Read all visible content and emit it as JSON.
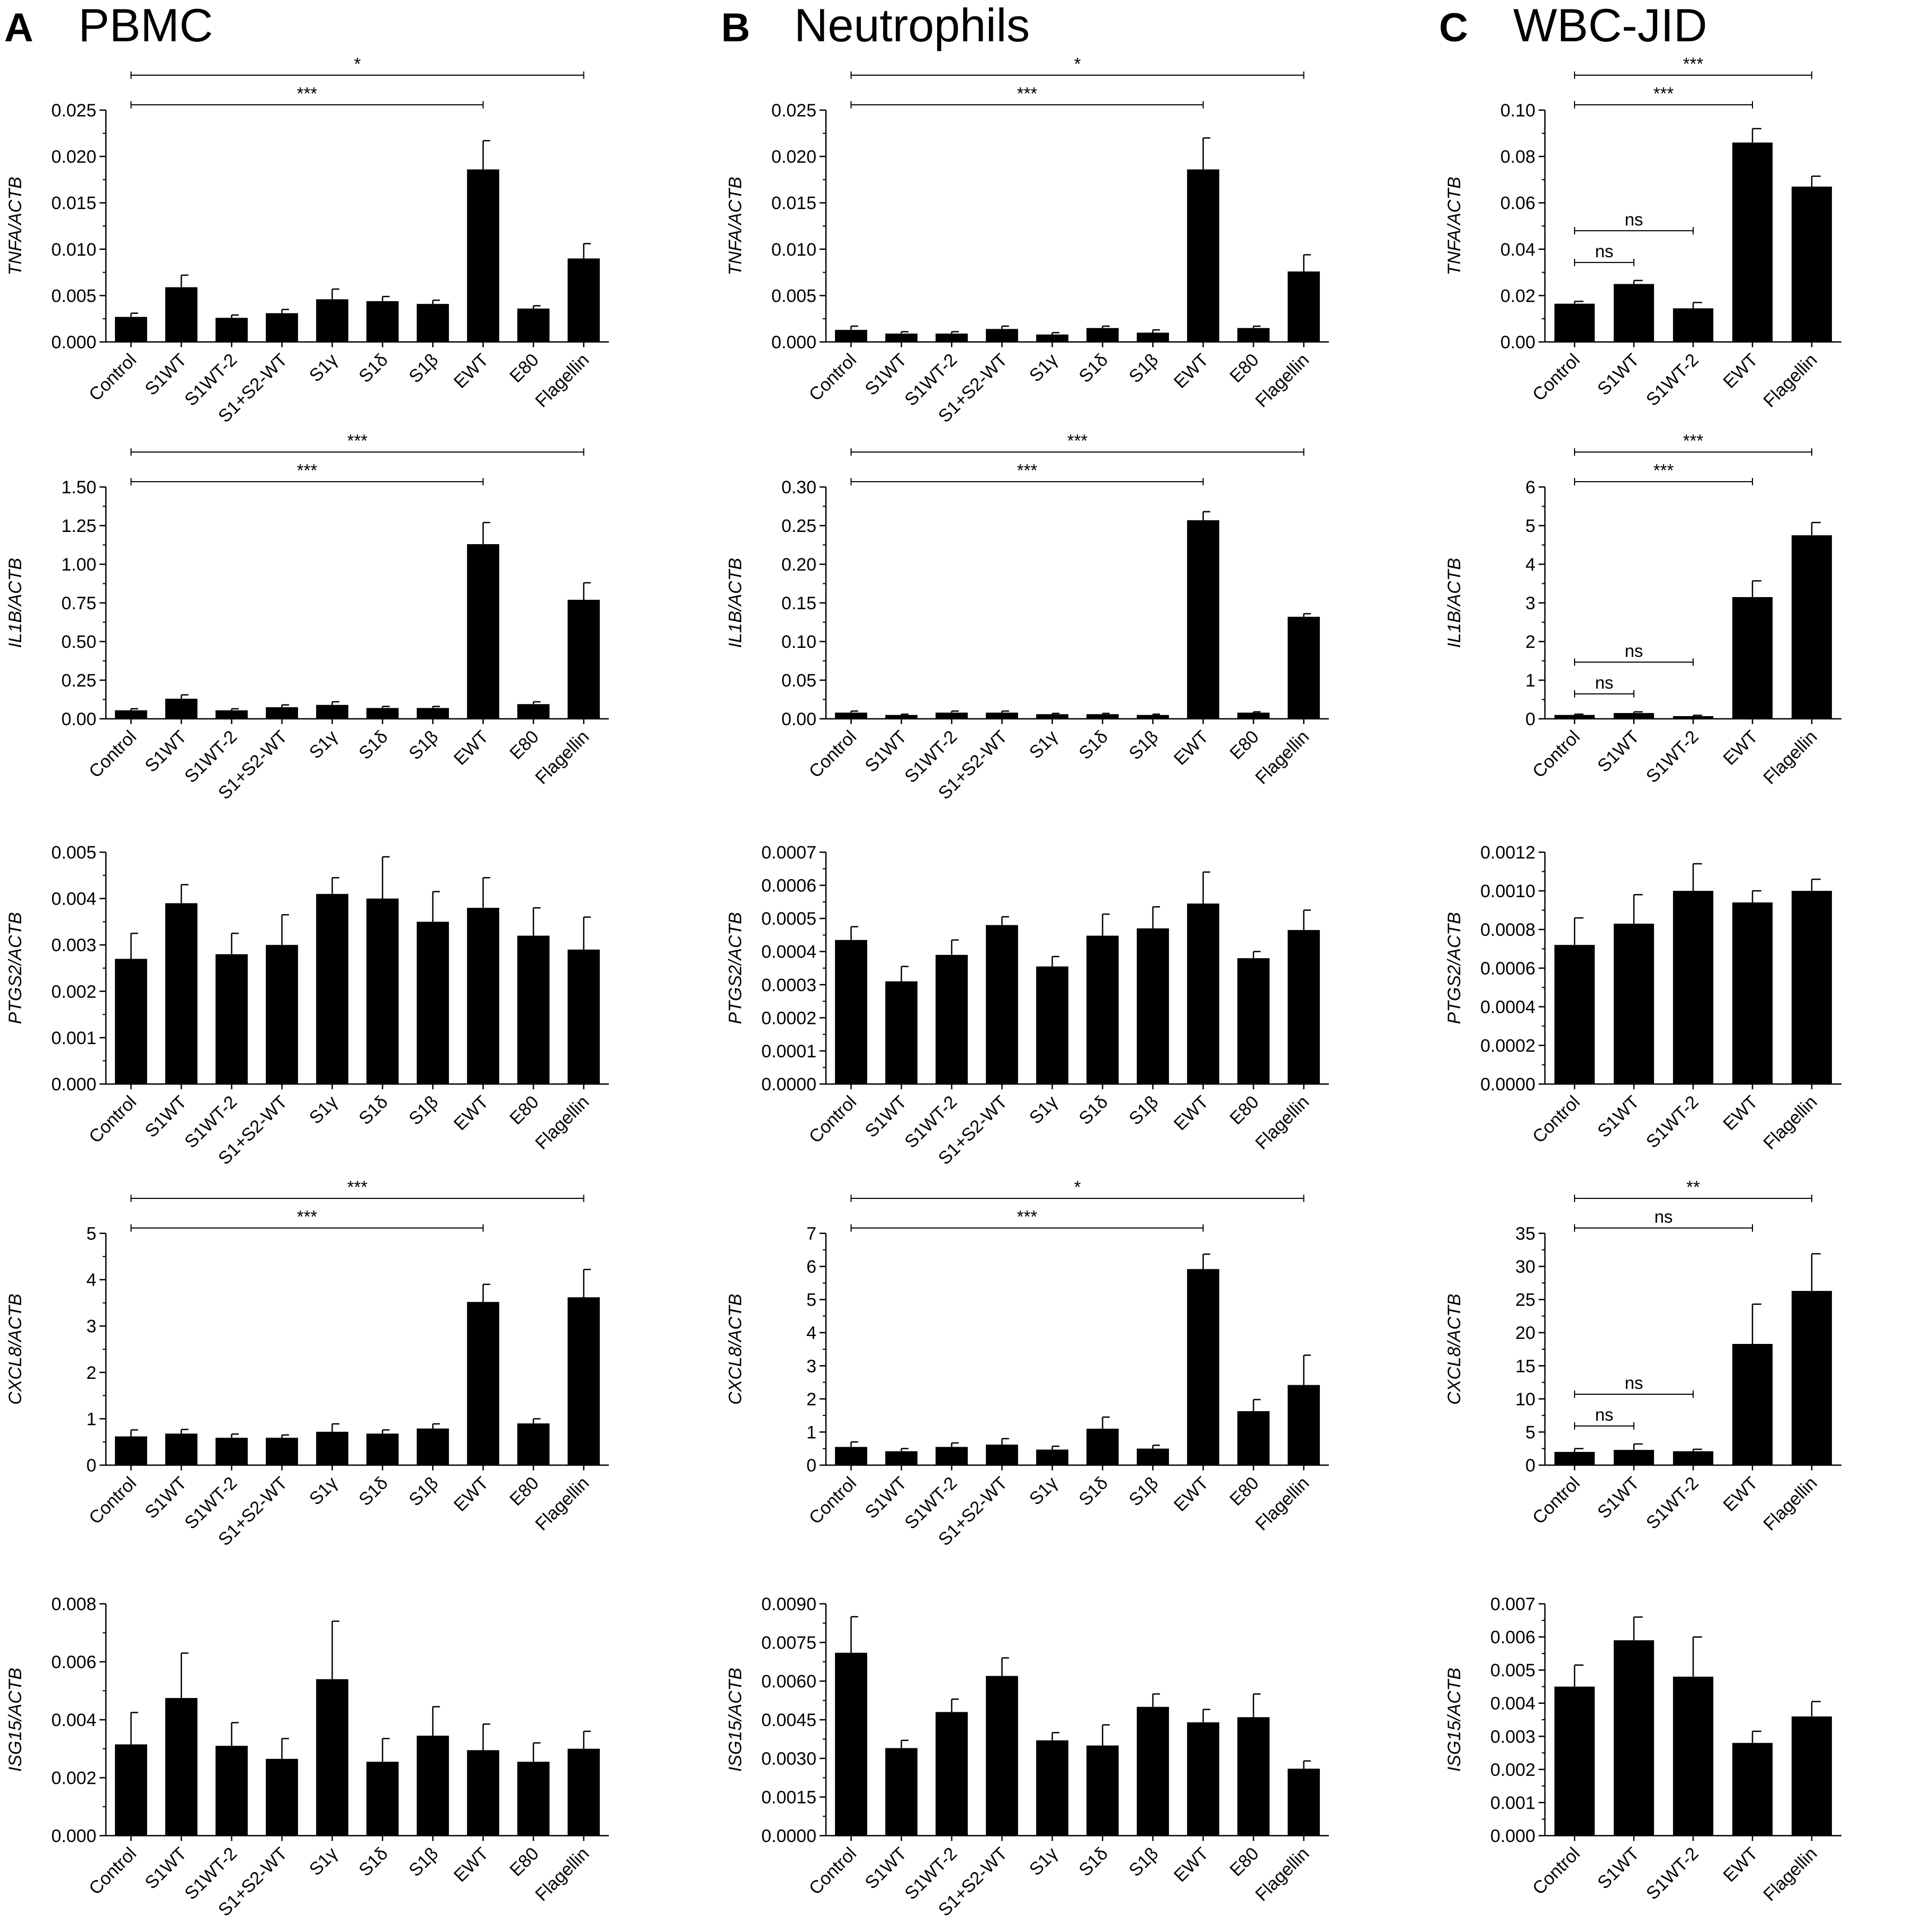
{
  "panels": [
    {
      "letter": "A",
      "title": "PBMC"
    },
    {
      "letter": "B",
      "title": "Neutrophils"
    },
    {
      "letter": "C",
      "title": "WBC-JID"
    }
  ],
  "categories_long": [
    "Control",
    "S1WT",
    "S1WT-2",
    "S1+S2-WT",
    "S1γ",
    "S1δ",
    "S1β",
    "EWT",
    "E80",
    "Flagellin"
  ],
  "categories_short": [
    "Control",
    "S1WT",
    "S1WT-2",
    "EWT",
    "Flagellin"
  ],
  "chart_data": [
    {
      "id": "A-TNFA",
      "panel": "A",
      "type": "bar",
      "ylabel": "TNFA/ACTB",
      "ylim": [
        0,
        0.025
      ],
      "ticks": [
        0,
        0.005,
        0.01,
        0.015,
        0.02,
        0.025
      ],
      "decimals": 3,
      "cats": "long",
      "values": [
        0.0027,
        0.0059,
        0.0026,
        0.0031,
        0.0046,
        0.0044,
        0.0041,
        0.0186,
        0.0036,
        0.009
      ],
      "errors": [
        0.0004,
        0.0013,
        0.0003,
        0.0004,
        0.0011,
        0.0005,
        0.0004,
        0.0031,
        0.0003,
        0.0016
      ],
      "sig": [
        {
          "from": 0,
          "to": 7,
          "label": "***"
        },
        {
          "from": 0,
          "to": 9,
          "label": "*"
        }
      ]
    },
    {
      "id": "B-TNFA",
      "panel": "B",
      "type": "bar",
      "ylabel": "TNFA/ACTB",
      "ylim": [
        0,
        0.025
      ],
      "ticks": [
        0,
        0.005,
        0.01,
        0.015,
        0.02,
        0.025
      ],
      "decimals": 3,
      "cats": "long",
      "values": [
        0.0013,
        0.0009,
        0.0009,
        0.0014,
        0.0008,
        0.0015,
        0.001,
        0.0186,
        0.0015,
        0.0076
      ],
      "errors": [
        0.0004,
        0.0002,
        0.0002,
        0.0003,
        0.0002,
        0.0002,
        0.0003,
        0.0034,
        0.0002,
        0.0018
      ],
      "sig": [
        {
          "from": 0,
          "to": 7,
          "label": "***"
        },
        {
          "from": 0,
          "to": 9,
          "label": "*"
        }
      ]
    },
    {
      "id": "C-TNFA",
      "panel": "C",
      "type": "bar",
      "ylabel": "TNFA/ACTB",
      "ylim": [
        0,
        0.1
      ],
      "ticks": [
        0,
        0.02,
        0.04,
        0.06,
        0.08,
        0.1
      ],
      "decimals": 2,
      "cats": "short",
      "values": [
        0.0165,
        0.025,
        0.0145,
        0.086,
        0.067
      ],
      "errors": [
        0.001,
        0.0015,
        0.0025,
        0.006,
        0.0045
      ],
      "sig": [
        {
          "from": 0,
          "to": 1,
          "label": "ns"
        },
        {
          "from": 0,
          "to": 2,
          "label": "ns"
        },
        {
          "from": 0,
          "to": 3,
          "label": "***"
        },
        {
          "from": 0,
          "to": 4,
          "label": "***"
        }
      ]
    },
    {
      "id": "A-IL1B",
      "panel": "A",
      "type": "bar",
      "ylabel": "IL1B/ACTB",
      "ylim": [
        0,
        1.5
      ],
      "ticks": [
        0,
        0.25,
        0.5,
        0.75,
        1,
        1.25,
        1.5
      ],
      "decimals": 2,
      "cats": "long",
      "values": [
        0.055,
        0.13,
        0.055,
        0.075,
        0.09,
        0.07,
        0.07,
        1.13,
        0.095,
        0.77
      ],
      "errors": [
        0.01,
        0.025,
        0.01,
        0.015,
        0.02,
        0.01,
        0.01,
        0.14,
        0.015,
        0.11
      ],
      "sig": [
        {
          "from": 0,
          "to": 7,
          "label": "***"
        },
        {
          "from": 0,
          "to": 9,
          "label": "***"
        }
      ]
    },
    {
      "id": "B-IL1B",
      "panel": "B",
      "type": "bar",
      "ylabel": "IL1B/ACTB",
      "ylim": [
        0,
        0.3
      ],
      "ticks": [
        0,
        0.05,
        0.1,
        0.15,
        0.2,
        0.25,
        0.3
      ],
      "decimals": 2,
      "cats": "long",
      "values": [
        0.008,
        0.005,
        0.008,
        0.008,
        0.006,
        0.006,
        0.005,
        0.257,
        0.008,
        0.132
      ],
      "errors": [
        0.002,
        0.001,
        0.002,
        0.002,
        0.001,
        0.001,
        0.001,
        0.011,
        0.001,
        0.004
      ],
      "sig": [
        {
          "from": 0,
          "to": 7,
          "label": "***"
        },
        {
          "from": 0,
          "to": 9,
          "label": "***"
        }
      ]
    },
    {
      "id": "C-IL1B",
      "panel": "C",
      "type": "bar",
      "ylabel": "IL1B/ACTB",
      "ylim": [
        0,
        6
      ],
      "ticks": [
        0,
        1,
        2,
        3,
        4,
        5,
        6
      ],
      "decimals": 0,
      "cats": "short",
      "values": [
        0.1,
        0.15,
        0.07,
        3.15,
        4.75
      ],
      "errors": [
        0.02,
        0.03,
        0.02,
        0.42,
        0.33
      ],
      "sig": [
        {
          "from": 0,
          "to": 1,
          "label": "ns"
        },
        {
          "from": 0,
          "to": 2,
          "label": "ns"
        },
        {
          "from": 0,
          "to": 3,
          "label": "***"
        },
        {
          "from": 0,
          "to": 4,
          "label": "***"
        }
      ]
    },
    {
      "id": "A-PTGS2",
      "panel": "A",
      "type": "bar",
      "ylabel": "PTGS2/ACTB",
      "ylim": [
        0,
        0.005
      ],
      "ticks": [
        0,
        0.001,
        0.002,
        0.003,
        0.004,
        0.005
      ],
      "decimals": 3,
      "cats": "long",
      "values": [
        0.0027,
        0.0039,
        0.0028,
        0.003,
        0.0041,
        0.004,
        0.0035,
        0.0038,
        0.0032,
        0.0029
      ],
      "errors": [
        0.00055,
        0.0004,
        0.00045,
        0.00065,
        0.00035,
        0.0009,
        0.00065,
        0.00065,
        0.0006,
        0.0007
      ],
      "sig": []
    },
    {
      "id": "B-PTGS2",
      "panel": "B",
      "type": "bar",
      "ylabel": "PTGS2/ACTB",
      "ylim": [
        0,
        0.0007
      ],
      "ticks": [
        0,
        0.0001,
        0.0002,
        0.0003,
        0.0004,
        0.0005,
        0.0006,
        0.0007
      ],
      "decimals": 4,
      "cats": "long",
      "values": [
        0.000435,
        0.00031,
        0.00039,
        0.00048,
        0.000355,
        0.000448,
        0.00047,
        0.000545,
        0.00038,
        0.000465
      ],
      "errors": [
        4e-05,
        4.5e-05,
        4.5e-05,
        2.5e-05,
        3e-05,
        6.5e-05,
        6.5e-05,
        9.5e-05,
        2e-05,
        6e-05
      ],
      "sig": []
    },
    {
      "id": "C-PTGS2",
      "panel": "C",
      "type": "bar",
      "ylabel": "PTGS2/ACTB",
      "ylim": [
        0,
        0.0012
      ],
      "ticks": [
        0,
        0.0002,
        0.0004,
        0.0006,
        0.0008,
        0.001,
        0.0012
      ],
      "decimals": 4,
      "cats": "short",
      "values": [
        0.00072,
        0.00083,
        0.001,
        0.00094,
        0.001
      ],
      "errors": [
        0.00014,
        0.00015,
        0.00014,
        6e-05,
        6e-05
      ],
      "sig": []
    },
    {
      "id": "A-CXCL8",
      "panel": "A",
      "type": "bar",
      "ylabel": "CXCL8/ACTB",
      "ylim": [
        0,
        5
      ],
      "ticks": [
        0,
        1,
        2,
        3,
        4,
        5
      ],
      "decimals": 0,
      "cats": "long",
      "values": [
        0.62,
        0.68,
        0.59,
        0.59,
        0.72,
        0.68,
        0.79,
        3.52,
        0.9,
        3.62
      ],
      "errors": [
        0.14,
        0.09,
        0.08,
        0.06,
        0.17,
        0.08,
        0.1,
        0.38,
        0.1,
        0.6
      ],
      "sig": [
        {
          "from": 0,
          "to": 7,
          "label": "***"
        },
        {
          "from": 0,
          "to": 9,
          "label": "***"
        }
      ]
    },
    {
      "id": "B-CXCL8",
      "panel": "B",
      "type": "bar",
      "ylabel": "CXCL8/ACTB",
      "ylim": [
        0,
        7
      ],
      "ticks": [
        0,
        1,
        2,
        3,
        4,
        5,
        6,
        7
      ],
      "decimals": 0,
      "cats": "long",
      "values": [
        0.55,
        0.42,
        0.55,
        0.62,
        0.47,
        1.1,
        0.5,
        5.92,
        1.63,
        2.42
      ],
      "errors": [
        0.15,
        0.08,
        0.12,
        0.18,
        0.1,
        0.35,
        0.1,
        0.45,
        0.35,
        0.9
      ],
      "sig": [
        {
          "from": 0,
          "to": 7,
          "label": "***"
        },
        {
          "from": 0,
          "to": 9,
          "label": "*"
        }
      ]
    },
    {
      "id": "C-CXCL8",
      "panel": "C",
      "type": "bar",
      "ylabel": "CXCL8/ACTB",
      "ylim": [
        0,
        35
      ],
      "ticks": [
        0,
        5,
        10,
        15,
        20,
        25,
        30,
        35
      ],
      "decimals": 0,
      "cats": "short",
      "values": [
        2,
        2.3,
        2.1,
        18.3,
        26.3
      ],
      "errors": [
        0.5,
        0.9,
        0.3,
        6,
        5.6
      ],
      "sig": [
        {
          "from": 0,
          "to": 1,
          "label": "ns"
        },
        {
          "from": 0,
          "to": 2,
          "label": "ns"
        },
        {
          "from": 0,
          "to": 3,
          "label": "ns"
        },
        {
          "from": 0,
          "to": 4,
          "label": "**"
        }
      ]
    },
    {
      "id": "A-ISG15",
      "panel": "A",
      "type": "bar",
      "ylabel": "ISG15/ACTB",
      "ylim": [
        0,
        0.008
      ],
      "ticks": [
        0,
        0.002,
        0.004,
        0.006,
        0.008
      ],
      "decimals": 3,
      "cats": "long",
      "values": [
        0.00315,
        0.00475,
        0.0031,
        0.00265,
        0.0054,
        0.00255,
        0.00345,
        0.00295,
        0.00255,
        0.003
      ],
      "errors": [
        0.0011,
        0.00155,
        0.0008,
        0.0007,
        0.002,
        0.0008,
        0.001,
        0.0009,
        0.00065,
        0.0006
      ],
      "sig": []
    },
    {
      "id": "B-ISG15",
      "panel": "B",
      "type": "bar",
      "ylabel": "ISG15/ACTB",
      "ylim": [
        0,
        0.009
      ],
      "ticks": [
        0,
        0.0015,
        0.003,
        0.0045,
        0.006,
        0.0075,
        0.009
      ],
      "decimals": 4,
      "cats": "long",
      "values": [
        0.0071,
        0.0034,
        0.0048,
        0.0062,
        0.0037,
        0.0035,
        0.005,
        0.0044,
        0.0046,
        0.0026
      ],
      "errors": [
        0.0014,
        0.0003,
        0.0005,
        0.0007,
        0.0003,
        0.0008,
        0.0005,
        0.0005,
        0.0009,
        0.0003
      ],
      "sig": []
    },
    {
      "id": "C-ISG15",
      "panel": "C",
      "type": "bar",
      "ylabel": "ISG15/ACTB",
      "ylim": [
        0,
        0.007
      ],
      "ticks": [
        0,
        0.001,
        0.002,
        0.003,
        0.004,
        0.005,
        0.006,
        0.007
      ],
      "decimals": 3,
      "cats": "short",
      "values": [
        0.0045,
        0.0059,
        0.0048,
        0.0028,
        0.0036
      ],
      "errors": [
        0.00065,
        0.0007,
        0.0012,
        0.00035,
        0.00045
      ],
      "sig": []
    }
  ]
}
